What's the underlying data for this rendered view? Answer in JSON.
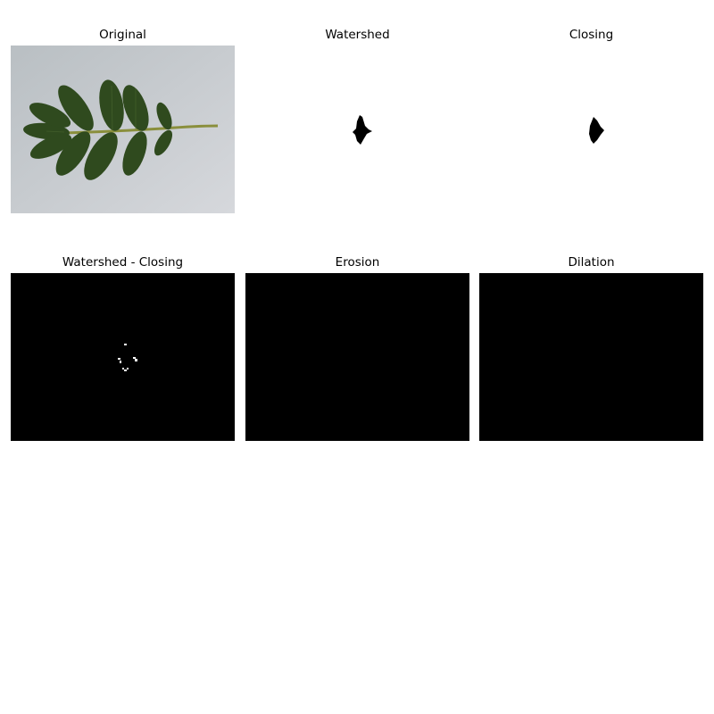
{
  "figure": {
    "panels": [
      {
        "id": "original",
        "title": "Original",
        "content": "leaf-photo"
      },
      {
        "id": "watershed",
        "title": "Watershed",
        "content": "binary-mask-black-on-white"
      },
      {
        "id": "closing",
        "title": "Closing",
        "content": "binary-mask-black-on-white"
      },
      {
        "id": "watershed-closing",
        "title": "Watershed - Closing",
        "content": "difference-white-on-black"
      },
      {
        "id": "erosion",
        "title": "Erosion",
        "content": "all-black"
      },
      {
        "id": "dilation",
        "title": "Dilation",
        "content": "all-black"
      }
    ]
  },
  "colors": {
    "background": "#ffffff",
    "photo_bg": "#c9cdd1",
    "leaf": "#2f4a1e",
    "stem": "#8a8f3c",
    "mask": "#000000"
  }
}
